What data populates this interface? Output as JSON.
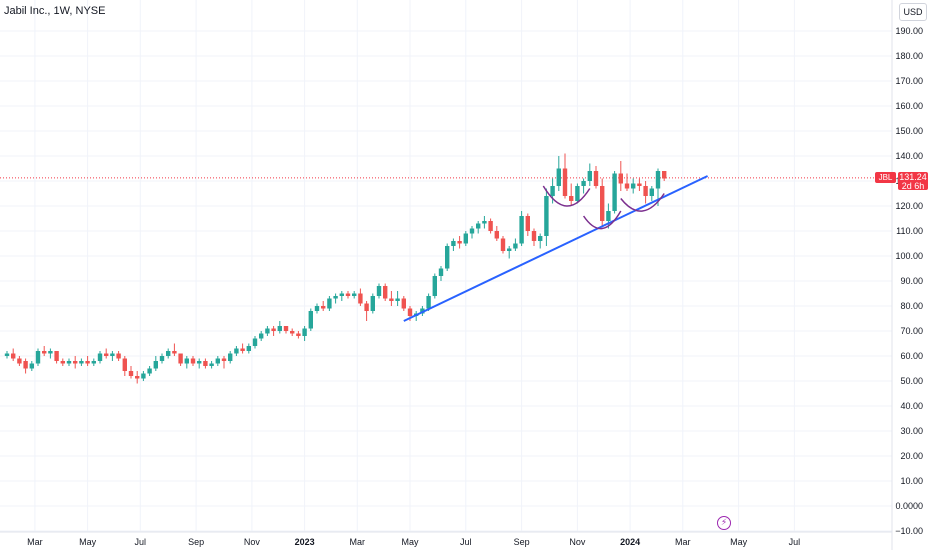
{
  "header": {
    "title": "Jabil Inc., 1W, NYSE"
  },
  "price_scale": {
    "currency": "USD"
  },
  "last_price": {
    "symbol": "JBL",
    "value": "131.24",
    "countdown": "2d 6h"
  },
  "colors": {
    "up": "#26a69a",
    "down": "#ef5350",
    "trendline": "#2962ff",
    "arc": "#7b2f8e",
    "price_line": "#f23645"
  },
  "icons": {
    "events": "lightning-icon"
  },
  "chart_data": {
    "type": "candlestick",
    "title": "Jabil Inc., 1W, NYSE",
    "ylim": [
      -10,
      200
    ],
    "yticks": [
      "190.00",
      "180.00",
      "170.00",
      "160.00",
      "150.00",
      "140.00",
      "130.00",
      "120.00",
      "110.00",
      "100.00",
      "90.00",
      "80.00",
      "70.00",
      "60.00",
      "50.00",
      "40.00",
      "30.00",
      "20.00",
      "10.00",
      "0.0000",
      "−10.00"
    ],
    "ytick_values": [
      190,
      180,
      170,
      160,
      150,
      140,
      130,
      120,
      110,
      100,
      90,
      80,
      70,
      60,
      50,
      40,
      30,
      20,
      10,
      0,
      -10
    ],
    "xticks": [
      {
        "label": "Mar",
        "week": 4.5
      },
      {
        "label": "May",
        "week": 13
      },
      {
        "label": "Jul",
        "week": 21.5
      },
      {
        "label": "Sep",
        "week": 30.5
      },
      {
        "label": "Nov",
        "week": 39.5
      },
      {
        "label": "2023",
        "week": 48
      },
      {
        "label": "Mar",
        "week": 56.5
      },
      {
        "label": "May",
        "week": 65
      },
      {
        "label": "Jul",
        "week": 74
      },
      {
        "label": "Sep",
        "week": 83
      },
      {
        "label": "Nov",
        "week": 92
      },
      {
        "label": "2024",
        "week": 100.5
      },
      {
        "label": "Mar",
        "week": 109
      },
      {
        "label": "May",
        "week": 118
      },
      {
        "label": "Jul",
        "week": 127
      }
    ],
    "candles": [
      [
        0,
        60,
        62,
        59,
        61
      ],
      [
        1,
        61,
        63,
        58,
        59
      ],
      [
        2,
        59,
        60,
        56,
        57
      ],
      [
        3,
        58,
        59,
        53,
        55
      ],
      [
        4,
        55,
        58,
        54,
        57
      ],
      [
        5,
        57,
        63,
        56,
        62
      ],
      [
        6,
        62,
        64,
        60,
        61
      ],
      [
        7,
        61,
        63,
        59,
        62
      ],
      [
        8,
        62,
        62,
        57,
        58
      ],
      [
        9,
        58,
        59,
        56,
        57
      ],
      [
        10,
        57,
        59,
        56,
        58
      ],
      [
        11,
        58,
        60,
        55,
        57
      ],
      [
        12,
        57,
        59,
        56,
        58
      ],
      [
        13,
        58,
        60,
        56,
        57
      ],
      [
        14,
        57,
        59,
        56,
        58
      ],
      [
        15,
        58,
        62,
        57,
        61
      ],
      [
        16,
        61,
        63,
        59,
        60
      ],
      [
        17,
        60,
        62,
        58,
        61
      ],
      [
        18,
        61,
        62,
        58,
        59
      ],
      [
        19,
        59,
        60,
        52,
        54
      ],
      [
        20,
        54,
        56,
        51,
        52
      ],
      [
        21,
        52,
        54,
        49,
        51
      ],
      [
        22,
        51,
        54,
        50,
        53
      ],
      [
        23,
        53,
        56,
        52,
        55
      ],
      [
        24,
        55,
        60,
        54,
        58
      ],
      [
        25,
        58,
        61,
        57,
        60
      ],
      [
        26,
        60,
        63,
        59,
        62
      ],
      [
        27,
        62,
        65,
        60,
        61
      ],
      [
        28,
        61,
        61,
        56,
        57
      ],
      [
        29,
        57,
        60,
        55,
        59
      ],
      [
        30,
        59,
        60,
        56,
        57
      ],
      [
        31,
        57,
        59,
        55,
        58
      ],
      [
        32,
        58,
        59,
        55,
        56
      ],
      [
        33,
        56,
        58,
        55,
        57
      ],
      [
        34,
        57,
        60,
        56,
        59
      ],
      [
        35,
        59,
        60,
        55,
        58
      ],
      [
        36,
        58,
        62,
        57,
        61
      ],
      [
        37,
        61,
        64,
        60,
        63
      ],
      [
        38,
        63,
        65,
        61,
        62
      ],
      [
        39,
        62,
        65,
        61,
        64
      ],
      [
        40,
        64,
        68,
        63,
        67
      ],
      [
        41,
        67,
        70,
        66,
        69
      ],
      [
        42,
        69,
        72,
        68,
        71
      ],
      [
        43,
        71,
        72,
        68,
        70
      ],
      [
        44,
        70,
        74,
        69,
        72
      ],
      [
        45,
        72,
        72,
        69,
        70
      ],
      [
        46,
        70,
        71,
        68,
        69
      ],
      [
        47,
        69,
        70,
        67,
        68
      ],
      [
        48,
        68,
        72,
        66,
        71
      ],
      [
        49,
        71,
        79,
        70,
        78
      ],
      [
        50,
        78,
        81,
        77,
        80
      ],
      [
        51,
        80,
        82,
        78,
        79
      ],
      [
        52,
        79,
        84,
        78,
        83
      ],
      [
        53,
        83,
        85,
        81,
        84
      ],
      [
        54,
        84,
        86,
        82,
        85
      ],
      [
        55,
        85,
        86,
        83,
        84
      ],
      [
        56,
        84,
        86,
        83,
        85
      ],
      [
        57,
        85,
        87,
        80,
        81
      ],
      [
        58,
        81,
        82,
        74,
        78
      ],
      [
        59,
        78,
        85,
        77,
        84
      ],
      [
        60,
        84,
        89,
        83,
        88
      ],
      [
        61,
        88,
        89,
        82,
        83
      ],
      [
        62,
        83,
        86,
        80,
        82
      ],
      [
        63,
        82,
        86,
        80,
        83
      ],
      [
        64,
        83,
        84,
        78,
        79
      ],
      [
        65,
        79,
        80,
        74,
        76
      ],
      [
        66,
        76,
        78,
        74,
        77
      ],
      [
        67,
        77,
        80,
        76,
        79
      ],
      [
        68,
        79,
        85,
        78,
        84
      ],
      [
        69,
        84,
        93,
        83,
        92
      ],
      [
        70,
        92,
        96,
        90,
        95
      ],
      [
        71,
        95,
        105,
        94,
        104
      ],
      [
        72,
        104,
        107,
        102,
        106
      ],
      [
        73,
        106,
        108,
        103,
        105
      ],
      [
        74,
        105,
        110,
        104,
        109
      ],
      [
        75,
        109,
        112,
        107,
        111
      ],
      [
        76,
        111,
        114,
        109,
        113
      ],
      [
        77,
        113,
        116,
        111,
        114
      ],
      [
        78,
        114,
        115,
        109,
        110
      ],
      [
        79,
        110,
        112,
        106,
        107
      ],
      [
        80,
        107,
        108,
        101,
        102
      ],
      [
        81,
        102,
        104,
        99,
        103
      ],
      [
        82,
        103,
        107,
        102,
        105
      ],
      [
        83,
        105,
        118,
        104,
        116
      ],
      [
        84,
        116,
        117,
        108,
        110
      ],
      [
        85,
        110,
        111,
        104,
        106
      ],
      [
        86,
        106,
        109,
        103,
        108
      ],
      [
        87,
        108,
        127,
        104,
        124
      ],
      [
        88,
        124,
        131,
        121,
        128
      ],
      [
        89,
        128,
        140,
        126,
        135
      ],
      [
        90,
        135,
        141,
        123,
        124
      ],
      [
        91,
        124,
        129,
        120,
        122
      ],
      [
        92,
        122,
        129,
        121,
        128
      ],
      [
        93,
        128,
        131,
        125,
        130
      ],
      [
        94,
        130,
        137,
        128,
        134
      ],
      [
        95,
        134,
        136,
        127,
        128
      ],
      [
        96,
        128,
        131,
        112,
        114
      ],
      [
        97,
        114,
        121,
        111,
        118
      ],
      [
        98,
        118,
        134,
        117,
        133
      ],
      [
        99,
        133,
        138,
        126,
        129
      ],
      [
        100,
        129,
        133,
        126,
        127
      ],
      [
        101,
        127,
        131,
        125,
        129
      ],
      [
        102,
        129,
        131,
        126,
        128
      ],
      [
        103,
        128,
        130,
        121,
        124
      ],
      [
        104,
        124,
        128,
        122,
        127
      ],
      [
        105,
        127,
        135,
        120,
        134
      ],
      [
        106,
        134,
        134,
        130,
        131
      ]
    ],
    "trendline": {
      "from": {
        "week": 64,
        "price": 74
      },
      "to": {
        "week": 113,
        "price": 132
      }
    },
    "arcs": [
      {
        "from": {
          "week": 86.5,
          "price": 128
        },
        "to": {
          "week": 94,
          "price": 127
        },
        "bottom": 120
      },
      {
        "from": {
          "week": 93,
          "price": 116
        },
        "to": {
          "week": 99,
          "price": 118
        },
        "bottom": 111
      },
      {
        "from": {
          "week": 99,
          "price": 123
        },
        "to": {
          "week": 106,
          "price": 125
        },
        "bottom": 118
      }
    ],
    "last_price": 131.24
  }
}
